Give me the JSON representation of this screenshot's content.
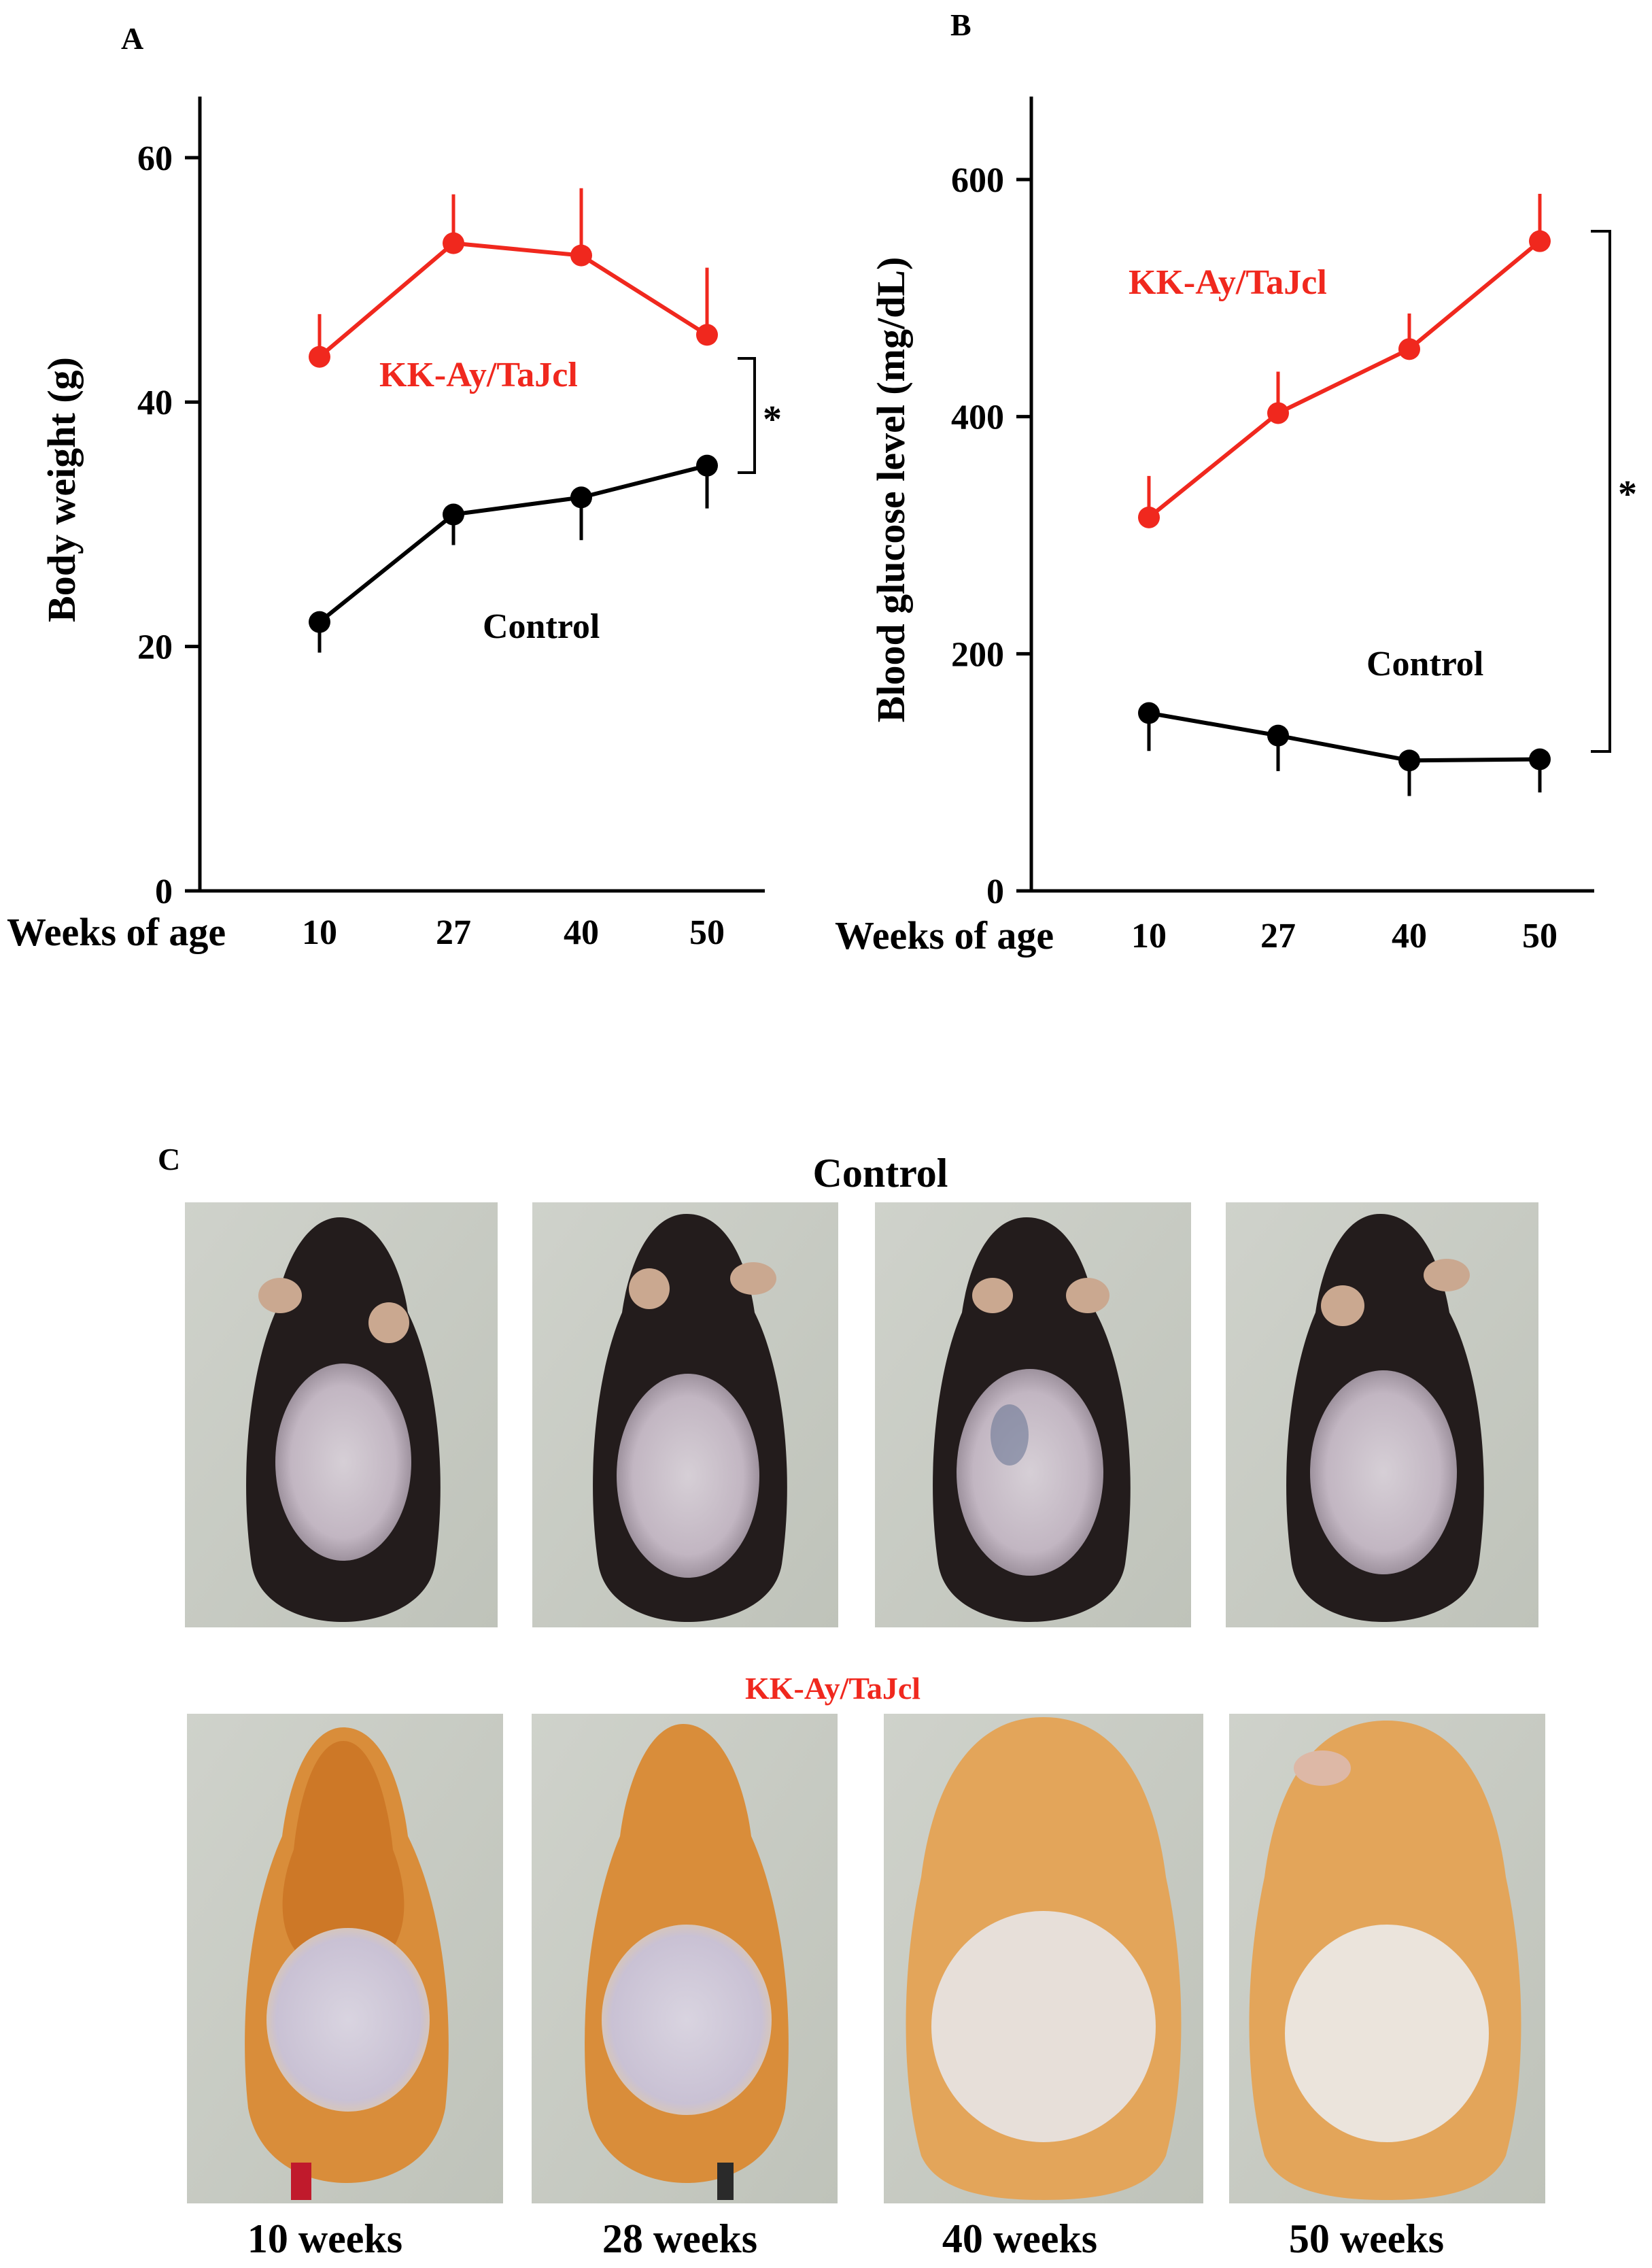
{
  "colors": {
    "red": "#f0281e",
    "black": "#000000",
    "photo_bg": "#c9ccc4"
  },
  "chart_data": [
    {
      "panel": "A",
      "type": "line",
      "ylabel": "Body weight (g)",
      "xlabel": "Weeks of age",
      "categories": [
        "10",
        "27",
        "40",
        "50"
      ],
      "ylim": [
        0,
        65
      ],
      "yticks": [
        0,
        20,
        40,
        60
      ],
      "series": [
        {
          "name": "KK-Ay/TaJcl",
          "color": "#f0281e",
          "values": [
            43.7,
            53.0,
            52.0,
            45.5
          ],
          "err": [
            3.5,
            4.0,
            5.5,
            5.5
          ],
          "err_dir": "up"
        },
        {
          "name": "Control",
          "color": "#000000",
          "values": [
            22.0,
            30.8,
            32.2,
            34.8
          ],
          "err": [
            2.5,
            2.5,
            3.5,
            3.5
          ],
          "err_dir": "down"
        }
      ],
      "significance": "*"
    },
    {
      "panel": "B",
      "type": "line",
      "ylabel": "Blood glucose level (mg/dL)",
      "xlabel": "Weeks of age",
      "categories": [
        "10",
        "27",
        "40",
        "50"
      ],
      "ylim": [
        0,
        670
      ],
      "yticks": [
        0,
        200,
        400,
        600
      ],
      "series": [
        {
          "name": "KK-Ay/TaJcl",
          "color": "#f0281e",
          "values": [
            315,
            403,
            457,
            548
          ],
          "err": [
            35,
            35,
            30,
            40
          ],
          "err_dir": "up"
        },
        {
          "name": "Control",
          "color": "#000000",
          "values": [
            150,
            131,
            110,
            111
          ],
          "err": [
            32,
            30,
            30,
            28
          ],
          "err_dir": "down"
        }
      ],
      "significance": "*"
    }
  ],
  "panel_c": {
    "letter": "C",
    "control_label": "Control",
    "kk_label": "KK-Ay/TaJcl",
    "weeks": [
      "10 weeks",
      "28 weeks",
      "40 weeks",
      "50 weeks"
    ]
  }
}
